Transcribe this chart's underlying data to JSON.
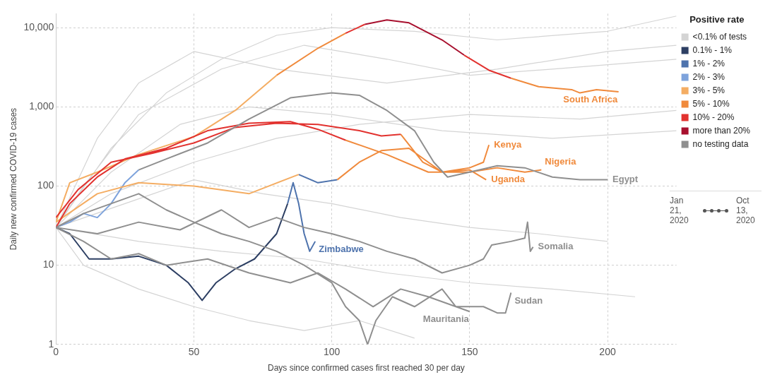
{
  "chart_data": {
    "type": "line",
    "xlabel": "Days since confirmed cases first reached 30 per day",
    "ylabel": "Daily new confirmed COVID-19 cases",
    "legend_title": "Positive rate",
    "legend": "right",
    "grid": true,
    "log": "y",
    "line_style": "solid",
    "marker": "none",
    "xlim": [
      0,
      225
    ],
    "xticks": [
      0,
      50,
      100,
      150,
      200
    ],
    "ylim": [
      1,
      15000
    ],
    "yticks": [
      1,
      10,
      100,
      {
        "value": 1000,
        "label": "1,000"
      },
      {
        "value": 10000,
        "label": "10,000"
      }
    ],
    "series": [
      {
        "name": "<0.1% of tests",
        "color": "#d4d4d4",
        "x": [
          0,
          20,
          40,
          60,
          80,
          100,
          130,
          160,
          200,
          225,
          null,
          0,
          15,
          30,
          50,
          80,
          120,
          160,
          200,
          225,
          null,
          0,
          20,
          50,
          80,
          110,
          150,
          190,
          225,
          null,
          0,
          10,
          30,
          50,
          70,
          90,
          110,
          130,
          null,
          0,
          25,
          50,
          75,
          100,
          125,
          150,
          175,
          200,
          null,
          0,
          20,
          45,
          70,
          100,
          140,
          180,
          225,
          null,
          0,
          30,
          60,
          90,
          120,
          150,
          180,
          210,
          null,
          0,
          10,
          30,
          60,
          90,
          120,
          150,
          180,
          225
        ],
        "values": [
          30,
          300,
          1500,
          4000,
          8000,
          10000,
          9000,
          7000,
          9000,
          14000,
          null,
          30,
          400,
          2000,
          5000,
          3000,
          2000,
          3000,
          5000,
          6000,
          null,
          30,
          80,
          200,
          400,
          600,
          800,
          700,
          900,
          null,
          30,
          10,
          5,
          3,
          2,
          1.5,
          2,
          1.2,
          null,
          30,
          60,
          120,
          80,
          60,
          40,
          30,
          25,
          20,
          null,
          30,
          150,
          600,
          1000,
          800,
          500,
          400,
          500,
          null,
          30,
          20,
          15,
          12,
          8,
          6,
          5,
          4,
          null,
          30,
          100,
          800,
          3000,
          6000,
          4000,
          2500,
          3000,
          4000
        ]
      },
      {
        "name": "0.1% - 1%",
        "color": "#2d3f63",
        "x": [
          0,
          5,
          12,
          20,
          30,
          40,
          48,
          53,
          58,
          65,
          72,
          80,
          84
        ],
        "values": [
          30,
          25,
          12,
          12,
          13,
          10,
          6,
          3.6,
          6,
          9,
          12,
          25,
          60
        ]
      },
      {
        "name": "1% - 2%",
        "color": "#4e73ad",
        "x": [
          84,
          86,
          88,
          90,
          92,
          94,
          null,
          88,
          95,
          102
        ],
        "values": [
          60,
          110,
          60,
          25,
          15,
          20,
          null,
          140,
          110,
          120
        ]
      },
      {
        "name": "2% - 3%",
        "color": "#7ea3dc",
        "x": [
          0,
          5,
          10,
          15,
          20,
          25,
          30
        ],
        "values": [
          30,
          35,
          45,
          40,
          60,
          110,
          160
        ]
      },
      {
        "name": "3% - 5%",
        "color": "#f4ad63",
        "x": [
          0,
          5,
          15,
          30,
          50,
          65,
          80,
          null,
          0,
          15,
          30,
          50,
          70,
          88
        ],
        "values": [
          35,
          110,
          150,
          250,
          420,
          900,
          2500,
          null,
          35,
          80,
          110,
          100,
          80,
          140
        ]
      },
      {
        "name": "5% - 10%",
        "color": "#f08a3c",
        "x": [
          80,
          95,
          105,
          null,
          165,
          175,
          187,
          190,
          196,
          204,
          null,
          105,
          120,
          135,
          150,
          160,
          170,
          176,
          null,
          125,
          133,
          140,
          150,
          155,
          157,
          null,
          102,
          110,
          118,
          128,
          135,
          140,
          150,
          156
        ],
        "values": [
          2500,
          5500,
          8500,
          null,
          2300,
          1800,
          1650,
          1500,
          1650,
          1550,
          null,
          380,
          250,
          150,
          150,
          170,
          150,
          160,
          null,
          450,
          200,
          150,
          170,
          200,
          330,
          null,
          120,
          200,
          280,
          300,
          200,
          150,
          160,
          120
        ]
      },
      {
        "name": "10% - 20%",
        "color": "#e2322f",
        "x": [
          105,
          112,
          null,
          148,
          157,
          165,
          null,
          0,
          5,
          15,
          25,
          40,
          55,
          70,
          85,
          95,
          105,
          null,
          0,
          8,
          20,
          35,
          50,
          65,
          80,
          95,
          110,
          118,
          125
        ],
        "values": [
          8500,
          11000,
          null,
          4500,
          2900,
          2300,
          null,
          30,
          60,
          130,
          220,
          300,
          500,
          620,
          650,
          520,
          380,
          null,
          40,
          90,
          200,
          260,
          350,
          550,
          620,
          600,
          500,
          430,
          450
        ]
      },
      {
        "name": "more than 20%",
        "color": "#a8102e",
        "x": [
          112,
          120,
          128,
          140,
          148
        ],
        "values": [
          11000,
          12500,
          11500,
          7000,
          4500
        ]
      },
      {
        "name": "no testing data",
        "color": "#8f8f8f",
        "x": [
          30,
          40,
          55,
          70,
          85,
          100,
          110,
          120,
          130,
          137,
          142,
          150,
          160,
          170,
          180,
          190,
          200,
          null,
          0,
          15,
          30,
          45,
          60,
          70,
          80,
          90,
          100,
          110,
          120,
          130,
          140,
          150,
          155,
          158,
          165,
          170,
          171,
          172,
          173,
          null,
          0,
          10,
          20,
          30,
          40,
          55,
          70,
          85,
          95,
          105,
          115,
          125,
          135,
          145,
          155,
          160,
          163,
          165,
          null,
          0,
          10,
          20,
          30,
          40,
          50,
          60,
          70,
          80,
          90,
          100,
          105,
          110,
          113,
          116,
          122,
          130,
          140,
          145,
          150
        ],
        "values": [
          160,
          220,
          350,
          700,
          1300,
          1500,
          1400,
          900,
          500,
          200,
          130,
          150,
          180,
          170,
          130,
          120,
          120,
          null,
          30,
          25,
          35,
          28,
          50,
          30,
          40,
          30,
          25,
          20,
          15,
          12,
          8,
          10,
          12,
          18,
          20,
          22,
          35,
          15,
          17,
          null,
          30,
          20,
          12,
          14,
          10,
          12,
          8,
          6,
          8,
          5,
          3,
          5,
          4,
          3,
          3,
          2.5,
          2.5,
          4.5,
          null,
          30,
          45,
          60,
          80,
          50,
          35,
          25,
          20,
          15,
          10,
          6,
          3,
          2,
          1,
          2,
          4,
          3,
          5,
          3,
          2.6
        ]
      }
    ],
    "annotations": [
      {
        "text": "South Africa",
        "x": 204,
        "y": 1550
      },
      {
        "text": "Kenya",
        "x": 157,
        "y": 330
      },
      {
        "text": "Nigeria",
        "x": 176,
        "y": 160
      },
      {
        "text": "Uganda",
        "x": 156,
        "y": 120
      },
      {
        "text": "Egypt",
        "x": 200,
        "y": 120
      },
      {
        "text": "Zimbabwe",
        "x": 94,
        "y": 20
      },
      {
        "text": "Somalia",
        "x": 173,
        "y": 17
      },
      {
        "text": "Sudan",
        "x": 165,
        "y": 4.5
      },
      {
        "text": "Mauritania",
        "x": 150,
        "y": 2.6
      },
      "Jan 21, 2020",
      "Oct 13, 2020"
    ]
  }
}
